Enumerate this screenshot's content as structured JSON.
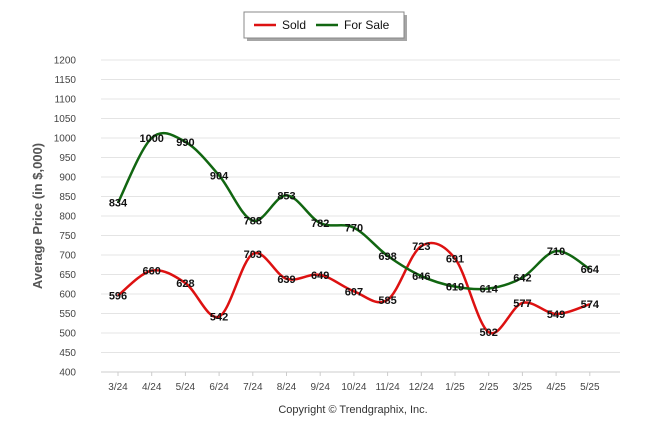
{
  "chart_data": {
    "type": "line",
    "categories": [
      "3/24",
      "4/24",
      "5/24",
      "6/24",
      "7/24",
      "8/24",
      "9/24",
      "10/24",
      "11/24",
      "12/24",
      "1/25",
      "2/25",
      "3/25",
      "4/25",
      "5/25"
    ],
    "series": [
      {
        "name": "Sold",
        "color": "#dd1111",
        "values": [
          596,
          660,
          628,
          542,
          703,
          639,
          649,
          607,
          585,
          723,
          691,
          502,
          577,
          549,
          574
        ]
      },
      {
        "name": "For Sale",
        "color": "#116611",
        "values": [
          834,
          1000,
          990,
          904,
          788,
          853,
          782,
          770,
          698,
          646,
          619,
          614,
          642,
          710,
          664
        ]
      }
    ],
    "ylabel": "Average Price (in $,000)",
    "xlabel": "",
    "ylim": [
      400,
      1200
    ],
    "yticks": [
      400,
      450,
      500,
      550,
      600,
      650,
      700,
      750,
      800,
      850,
      900,
      950,
      1000,
      1050,
      1100,
      1150,
      1200
    ],
    "grid": true,
    "legend_position": "top-center"
  },
  "footer": {
    "copyright": "Copyright © Trendgraphix, Inc."
  }
}
